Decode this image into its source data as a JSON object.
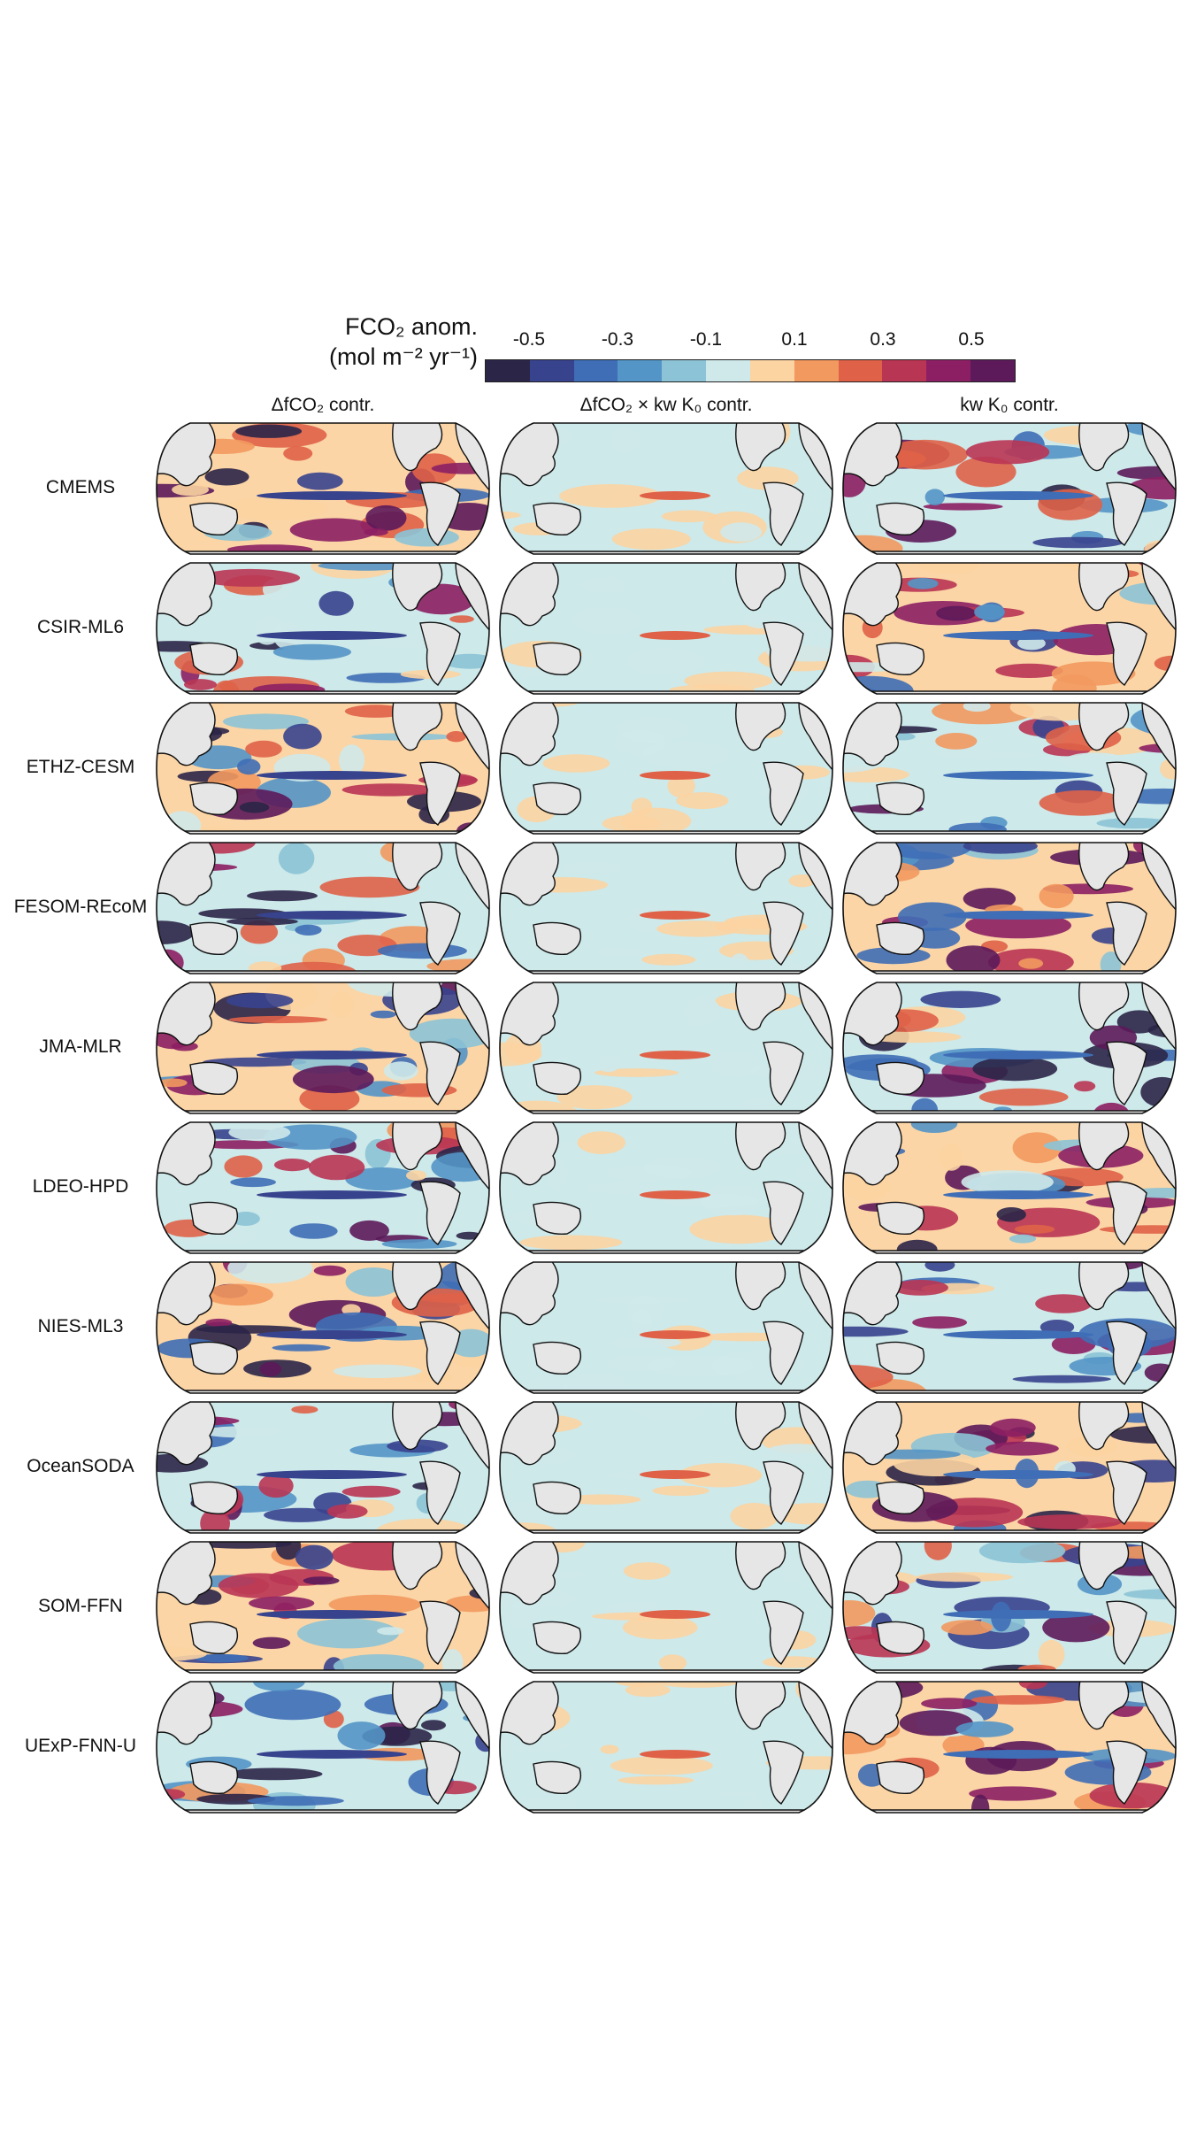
{
  "colorbar": {
    "title_line1": "FCO₂ anom.",
    "title_line2": "(mol m⁻² yr⁻¹)",
    "ticks": [
      "-0.5",
      "-0.3",
      "-0.1",
      "0.1",
      "0.3",
      "0.5"
    ],
    "colors": [
      "#2b2548",
      "#38438e",
      "#3f6eb6",
      "#5495c7",
      "#8cc3d6",
      "#cfe9ea",
      "#fcd4a2",
      "#f2995f",
      "#df6248",
      "#b93554",
      "#8c1f63",
      "#5c1a5a"
    ]
  },
  "columns": [
    "ΔfCO₂ contr.",
    "ΔfCO₂ × kw K₀ contr.",
    "kw K₀ contr."
  ],
  "rows": [
    "CMEMS",
    "CSIR-ML6",
    "ETHZ-CESM",
    "FESOM-REcoM",
    "JMA-MLR",
    "LDEO-HPD",
    "NIES-ML3",
    "OceanSODA",
    "SOM-FFN",
    "UExP-FNN-U"
  ],
  "map_colors": {
    "land": "#e6e6e6",
    "ocean_pos": "#fbd5a6",
    "ocean_neg": "#cde9ea",
    "coast": "#111111"
  }
}
